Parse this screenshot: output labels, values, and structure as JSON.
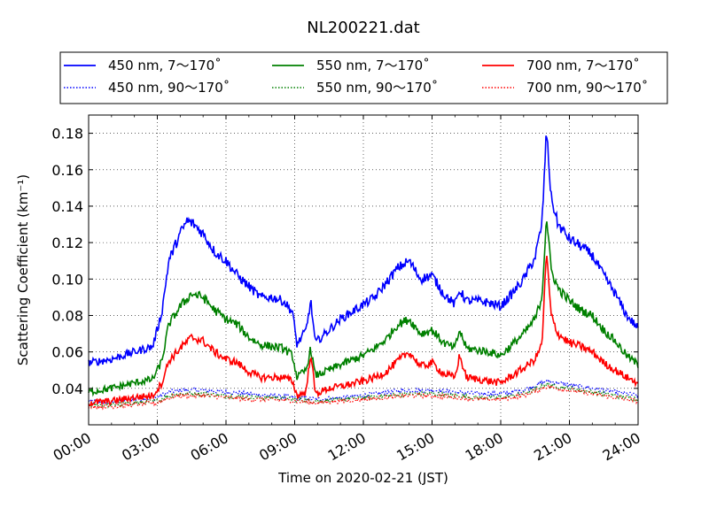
{
  "chart_data": {
    "type": "line",
    "title": "NL200221.dat",
    "xlabel": "Time on 2020-02-21 (JST)",
    "ylabel": "Scattering Coefficient (km⁻¹)",
    "xlim": [
      0,
      24
    ],
    "ylim": [
      0.02,
      0.19
    ],
    "x_ticks": [
      "00:00",
      "03:00",
      "06:00",
      "09:00",
      "12:00",
      "15:00",
      "18:00",
      "21:00",
      "24:00"
    ],
    "y_ticks": [
      "0.04",
      "0.06",
      "0.08",
      "0.10",
      "0.12",
      "0.14",
      "0.16",
      "0.18"
    ],
    "grid": true,
    "legend_position": "top",
    "series": [
      {
        "name": "450 nm, 7～170˚",
        "color": "#0000ff",
        "style": "solid",
        "points": [
          [
            0,
            0.054
          ],
          [
            1,
            0.056
          ],
          [
            2,
            0.06
          ],
          [
            2.8,
            0.063
          ],
          [
            3.2,
            0.082
          ],
          [
            3.5,
            0.11
          ],
          [
            4,
            0.125
          ],
          [
            4.3,
            0.132
          ],
          [
            4.6,
            0.13
          ],
          [
            5,
            0.125
          ],
          [
            5.5,
            0.115
          ],
          [
            6,
            0.11
          ],
          [
            6.5,
            0.102
          ],
          [
            7,
            0.096
          ],
          [
            7.5,
            0.09
          ],
          [
            8,
            0.09
          ],
          [
            8.5,
            0.088
          ],
          [
            8.9,
            0.082
          ],
          [
            9.1,
            0.064
          ],
          [
            9.5,
            0.072
          ],
          [
            9.7,
            0.088
          ],
          [
            9.9,
            0.065
          ],
          [
            10.5,
            0.072
          ],
          [
            11,
            0.078
          ],
          [
            12,
            0.086
          ],
          [
            12.5,
            0.09
          ],
          [
            13,
            0.098
          ],
          [
            13.5,
            0.106
          ],
          [
            14,
            0.11
          ],
          [
            14.5,
            0.1
          ],
          [
            15,
            0.102
          ],
          [
            15.5,
            0.092
          ],
          [
            16,
            0.086
          ],
          [
            16.2,
            0.094
          ],
          [
            16.5,
            0.088
          ],
          [
            17,
            0.088
          ],
          [
            17.5,
            0.087
          ],
          [
            18,
            0.085
          ],
          [
            18.5,
            0.092
          ],
          [
            19,
            0.1
          ],
          [
            19.5,
            0.112
          ],
          [
            19.8,
            0.13
          ],
          [
            20,
            0.182
          ],
          [
            20.2,
            0.145
          ],
          [
            20.5,
            0.13
          ],
          [
            21,
            0.122
          ],
          [
            21.5,
            0.118
          ],
          [
            22,
            0.113
          ],
          [
            22.5,
            0.102
          ],
          [
            23,
            0.092
          ],
          [
            23.5,
            0.08
          ],
          [
            24,
            0.073
          ]
        ]
      },
      {
        "name": "450 nm, 90～170˚",
        "color": "#0000ff",
        "style": "dotted",
        "points": [
          [
            0,
            0.033
          ],
          [
            1,
            0.032
          ],
          [
            2,
            0.034
          ],
          [
            3,
            0.035
          ],
          [
            3.5,
            0.038
          ],
          [
            4,
            0.039
          ],
          [
            5,
            0.039
          ],
          [
            6,
            0.038
          ],
          [
            7,
            0.037
          ],
          [
            8,
            0.036
          ],
          [
            9,
            0.035
          ],
          [
            10,
            0.034
          ],
          [
            11,
            0.035
          ],
          [
            12,
            0.036
          ],
          [
            13,
            0.038
          ],
          [
            14,
            0.039
          ],
          [
            15,
            0.039
          ],
          [
            16,
            0.038
          ],
          [
            17,
            0.037
          ],
          [
            18,
            0.037
          ],
          [
            19,
            0.039
          ],
          [
            20,
            0.044
          ],
          [
            20.5,
            0.043
          ],
          [
            21,
            0.042
          ],
          [
            22,
            0.04
          ],
          [
            23,
            0.038
          ],
          [
            24,
            0.036
          ]
        ]
      },
      {
        "name": "550 nm, 7～170˚",
        "color": "#008000",
        "style": "solid",
        "points": [
          [
            0,
            0.038
          ],
          [
            1,
            0.04
          ],
          [
            2,
            0.043
          ],
          [
            2.8,
            0.045
          ],
          [
            3.2,
            0.055
          ],
          [
            3.5,
            0.075
          ],
          [
            4,
            0.085
          ],
          [
            4.5,
            0.092
          ],
          [
            5,
            0.09
          ],
          [
            5.5,
            0.083
          ],
          [
            6,
            0.078
          ],
          [
            6.5,
            0.075
          ],
          [
            7,
            0.068
          ],
          [
            7.5,
            0.064
          ],
          [
            8,
            0.063
          ],
          [
            8.5,
            0.062
          ],
          [
            8.9,
            0.058
          ],
          [
            9.1,
            0.046
          ],
          [
            9.5,
            0.05
          ],
          [
            9.7,
            0.062
          ],
          [
            9.9,
            0.047
          ],
          [
            10.5,
            0.05
          ],
          [
            11,
            0.053
          ],
          [
            12,
            0.058
          ],
          [
            12.5,
            0.062
          ],
          [
            13,
            0.067
          ],
          [
            13.5,
            0.075
          ],
          [
            14,
            0.078
          ],
          [
            14.5,
            0.07
          ],
          [
            15,
            0.072
          ],
          [
            15.5,
            0.065
          ],
          [
            16,
            0.062
          ],
          [
            16.2,
            0.072
          ],
          [
            16.5,
            0.062
          ],
          [
            17,
            0.061
          ],
          [
            17.5,
            0.06
          ],
          [
            18,
            0.058
          ],
          [
            18.5,
            0.064
          ],
          [
            19,
            0.07
          ],
          [
            19.5,
            0.078
          ],
          [
            19.8,
            0.09
          ],
          [
            20,
            0.135
          ],
          [
            20.2,
            0.105
          ],
          [
            20.5,
            0.095
          ],
          [
            21,
            0.088
          ],
          [
            21.5,
            0.083
          ],
          [
            22,
            0.08
          ],
          [
            22.5,
            0.072
          ],
          [
            23,
            0.066
          ],
          [
            23.5,
            0.058
          ],
          [
            24,
            0.053
          ]
        ]
      },
      {
        "name": "550 nm, 90～170˚",
        "color": "#008000",
        "style": "dotted",
        "points": [
          [
            0,
            0.031
          ],
          [
            1,
            0.031
          ],
          [
            2,
            0.032
          ],
          [
            3,
            0.033
          ],
          [
            3.5,
            0.036
          ],
          [
            4,
            0.037
          ],
          [
            5,
            0.037
          ],
          [
            6,
            0.036
          ],
          [
            7,
            0.035
          ],
          [
            8,
            0.035
          ],
          [
            9,
            0.034
          ],
          [
            10,
            0.033
          ],
          [
            11,
            0.034
          ],
          [
            12,
            0.035
          ],
          [
            13,
            0.036
          ],
          [
            14,
            0.037
          ],
          [
            15,
            0.037
          ],
          [
            16,
            0.036
          ],
          [
            17,
            0.035
          ],
          [
            18,
            0.035
          ],
          [
            19,
            0.037
          ],
          [
            20,
            0.042
          ],
          [
            20.5,
            0.041
          ],
          [
            21,
            0.04
          ],
          [
            22,
            0.038
          ],
          [
            23,
            0.036
          ],
          [
            24,
            0.034
          ]
        ]
      },
      {
        "name": "700 nm, 7～170˚",
        "color": "#ff0000",
        "style": "solid",
        "points": [
          [
            0,
            0.032
          ],
          [
            1,
            0.033
          ],
          [
            2,
            0.035
          ],
          [
            2.8,
            0.036
          ],
          [
            3.2,
            0.043
          ],
          [
            3.5,
            0.055
          ],
          [
            4,
            0.062
          ],
          [
            4.5,
            0.068
          ],
          [
            5,
            0.066
          ],
          [
            5.5,
            0.06
          ],
          [
            6,
            0.056
          ],
          [
            6.5,
            0.054
          ],
          [
            7,
            0.049
          ],
          [
            7.5,
            0.046
          ],
          [
            8,
            0.046
          ],
          [
            8.5,
            0.046
          ],
          [
            8.9,
            0.044
          ],
          [
            9.1,
            0.036
          ],
          [
            9.5,
            0.038
          ],
          [
            9.7,
            0.06
          ],
          [
            9.9,
            0.037
          ],
          [
            10.5,
            0.04
          ],
          [
            11,
            0.041
          ],
          [
            12,
            0.044
          ],
          [
            12.5,
            0.046
          ],
          [
            13,
            0.049
          ],
          [
            13.5,
            0.055
          ],
          [
            14,
            0.06
          ],
          [
            14.5,
            0.052
          ],
          [
            15,
            0.054
          ],
          [
            15.5,
            0.048
          ],
          [
            16,
            0.046
          ],
          [
            16.2,
            0.058
          ],
          [
            16.5,
            0.046
          ],
          [
            17,
            0.045
          ],
          [
            17.5,
            0.044
          ],
          [
            18,
            0.043
          ],
          [
            18.5,
            0.047
          ],
          [
            19,
            0.051
          ],
          [
            19.5,
            0.056
          ],
          [
            19.8,
            0.064
          ],
          [
            20,
            0.115
          ],
          [
            20.2,
            0.08
          ],
          [
            20.5,
            0.07
          ],
          [
            21,
            0.065
          ],
          [
            21.5,
            0.063
          ],
          [
            22,
            0.06
          ],
          [
            22.5,
            0.054
          ],
          [
            23,
            0.05
          ],
          [
            23.5,
            0.046
          ],
          [
            24,
            0.043
          ]
        ]
      },
      {
        "name": "700 nm, 90～170˚",
        "color": "#ff0000",
        "style": "dotted",
        "points": [
          [
            0,
            0.03
          ],
          [
            1,
            0.03
          ],
          [
            2,
            0.031
          ],
          [
            3,
            0.032
          ],
          [
            3.5,
            0.035
          ],
          [
            4,
            0.036
          ],
          [
            5,
            0.036
          ],
          [
            6,
            0.035
          ],
          [
            7,
            0.034
          ],
          [
            8,
            0.034
          ],
          [
            9,
            0.033
          ],
          [
            10,
            0.032
          ],
          [
            11,
            0.033
          ],
          [
            12,
            0.034
          ],
          [
            13,
            0.035
          ],
          [
            14,
            0.036
          ],
          [
            15,
            0.036
          ],
          [
            16,
            0.035
          ],
          [
            17,
            0.034
          ],
          [
            18,
            0.034
          ],
          [
            19,
            0.036
          ],
          [
            20,
            0.041
          ],
          [
            20.5,
            0.04
          ],
          [
            21,
            0.039
          ],
          [
            22,
            0.037
          ],
          [
            23,
            0.035
          ],
          [
            24,
            0.033
          ]
        ]
      }
    ]
  }
}
